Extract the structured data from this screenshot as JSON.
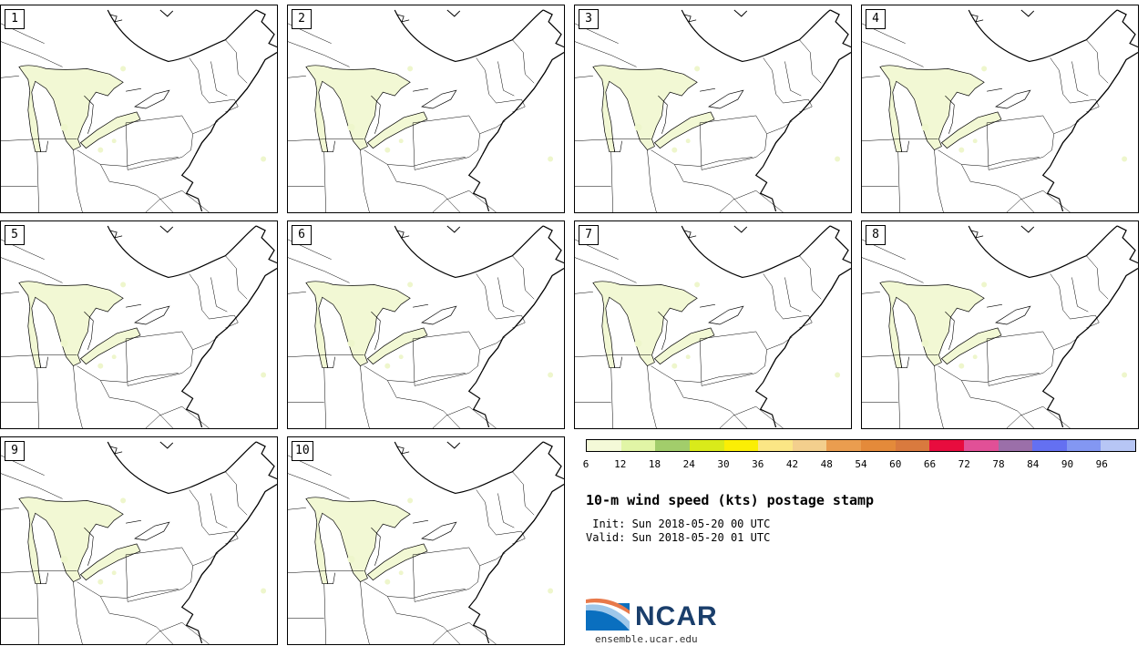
{
  "panels": [
    {
      "label": "1"
    },
    {
      "label": "2"
    },
    {
      "label": "3"
    },
    {
      "label": "4"
    },
    {
      "label": "5"
    },
    {
      "label": "6"
    },
    {
      "label": "7"
    },
    {
      "label": "8"
    },
    {
      "label": "9"
    },
    {
      "label": "10"
    }
  ],
  "colorbar": {
    "colors": [
      "#f4f9d8",
      "#e1f5a6",
      "#a2cd6b",
      "#d9ea1a",
      "#fbee05",
      "#fbe685",
      "#f3cf8d",
      "#ea9d4f",
      "#e48a3a",
      "#d97a3e",
      "#e80c3e",
      "#e15097",
      "#9b6fa9",
      "#6470f1",
      "#8397f2",
      "#b7c6f5"
    ],
    "ticks": [
      "6",
      "12",
      "18",
      "24",
      "30",
      "36",
      "42",
      "48",
      "54",
      "60",
      "66",
      "72",
      "78",
      "84",
      "90",
      "96"
    ]
  },
  "title": "10-m wind speed (kts) postage stamp",
  "init": " Init: Sun 2018-05-20 00 UTC",
  "valid": "Valid: Sun 2018-05-20 01 UTC",
  "logo": {
    "name": "NCAR",
    "site": "ensemble.ucar.edu"
  }
}
